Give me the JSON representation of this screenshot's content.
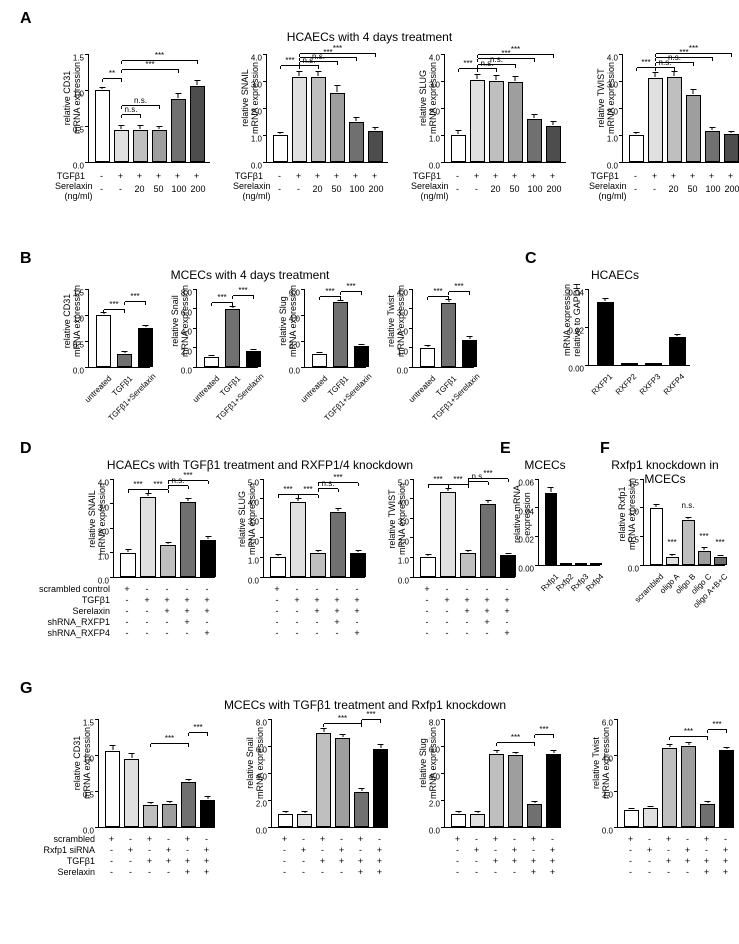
{
  "colors": {
    "white": "#ffffff",
    "gray1": "#e0e0e0",
    "gray2": "#bfbfbf",
    "gray3": "#9e9e9e",
    "gray4": "#707070",
    "gray5": "#4d4d4d",
    "black": "#000000"
  },
  "labels": {
    "A": "A",
    "B": "B",
    "C": "C",
    "D": "D",
    "E": "E",
    "F": "F",
    "G": "G"
  },
  "titles": {
    "A": "HCAECs with 4 days treatment",
    "B": "MCECs with 4 days treatment",
    "C": "HCAECs",
    "D": "HCAECs with TGFβ1 treatment and RXFP1/4 knockdown",
    "E": "MCECs",
    "F": "Rxfp1 knockdown in MCECs",
    "G": "MCECs with TGFβ1 treatment and Rxfp1 knockdown"
  },
  "panelA": {
    "row1": "TGFβ1",
    "row2": "Serelaxin\n(ng/ml)",
    "conds_r1": [
      "-",
      "+",
      "+",
      "+",
      "+",
      "+"
    ],
    "conds_r2": [
      "-",
      "-",
      "20",
      "50",
      "100",
      "200"
    ],
    "charts": [
      {
        "ylabel": "relative CD31\nmRNA expression",
        "ymax": 1.5,
        "ytick": 0.5,
        "bars": [
          1.0,
          0.45,
          0.45,
          0.45,
          0.88,
          1.05
        ],
        "err": [
          0.03,
          0.05,
          0.05,
          0.04,
          0.07,
          0.07
        ],
        "colors": [
          "white",
          "gray1",
          "gray2",
          "gray3",
          "gray4",
          "gray5"
        ],
        "sigs": [
          {
            "from": 0,
            "to": 1,
            "y": 1.15,
            "text": "**"
          },
          {
            "from": 1,
            "to": 2,
            "y": 0.65,
            "text": "n.s."
          },
          {
            "from": 1,
            "to": 3,
            "y": 0.78,
            "text": "n.s."
          },
          {
            "from": 1,
            "to": 4,
            "y": 1.28,
            "text": "***"
          },
          {
            "from": 1,
            "to": 5,
            "y": 1.4,
            "text": "***"
          }
        ]
      },
      {
        "ylabel": "relative SNAIL\nmRNA expression",
        "ymax": 4.0,
        "ytick": 1.0,
        "bars": [
          1.0,
          3.15,
          3.15,
          2.55,
          1.5,
          1.15
        ],
        "err": [
          0.08,
          0.2,
          0.2,
          0.25,
          0.12,
          0.1
        ],
        "colors": [
          "white",
          "gray1",
          "gray2",
          "gray3",
          "gray4",
          "gray5"
        ],
        "sigs": [
          {
            "from": 0,
            "to": 1,
            "y": 3.55,
            "text": "***"
          },
          {
            "from": 1,
            "to": 2,
            "y": 3.55,
            "text": "n.s."
          },
          {
            "from": 1,
            "to": 3,
            "y": 3.7,
            "text": "n.s."
          },
          {
            "from": 1,
            "to": 4,
            "y": 3.85,
            "text": "***"
          },
          {
            "from": 1,
            "to": 5,
            "y": 4.0,
            "text": "***"
          }
        ]
      },
      {
        "ylabel": "relative SLUG\nmRNA expression",
        "ymax": 4.0,
        "ytick": 1.0,
        "bars": [
          1.0,
          3.05,
          3.0,
          2.95,
          1.6,
          1.35
        ],
        "err": [
          0.15,
          0.18,
          0.18,
          0.2,
          0.15,
          0.15
        ],
        "colors": [
          "white",
          "gray1",
          "gray2",
          "gray3",
          "gray4",
          "gray5"
        ],
        "sigs": [
          {
            "from": 0,
            "to": 1,
            "y": 3.45,
            "text": "***"
          },
          {
            "from": 1,
            "to": 2,
            "y": 3.45,
            "text": "n.s."
          },
          {
            "from": 1,
            "to": 3,
            "y": 3.6,
            "text": "n.s."
          },
          {
            "from": 1,
            "to": 4,
            "y": 3.8,
            "text": "***"
          },
          {
            "from": 1,
            "to": 5,
            "y": 3.95,
            "text": "***"
          }
        ]
      },
      {
        "ylabel": "relative TWIST\nmRNA expression",
        "ymax": 4.0,
        "ytick": 1.0,
        "bars": [
          1.0,
          3.1,
          3.15,
          2.5,
          1.15,
          1.05
        ],
        "err": [
          0.08,
          0.2,
          0.2,
          0.18,
          0.1,
          0.08
        ],
        "colors": [
          "white",
          "gray1",
          "gray2",
          "gray3",
          "gray4",
          "gray5"
        ],
        "sigs": [
          {
            "from": 0,
            "to": 1,
            "y": 3.5,
            "text": "***"
          },
          {
            "from": 1,
            "to": 2,
            "y": 3.5,
            "text": "n.s."
          },
          {
            "from": 1,
            "to": 3,
            "y": 3.65,
            "text": "n.s."
          },
          {
            "from": 1,
            "to": 4,
            "y": 3.85,
            "text": "***"
          },
          {
            "from": 1,
            "to": 5,
            "y": 4.0,
            "text": "***"
          }
        ]
      }
    ]
  },
  "panelB": {
    "xlabs": [
      "untreated",
      "TGFβ1",
      "TGFβ1+Serelaxin"
    ],
    "charts": [
      {
        "ylabel": "relative CD31\nmRNA expression",
        "ymax": 1.5,
        "ytick": 0.5,
        "bars": [
          1.0,
          0.25,
          0.75
        ],
        "err": [
          0.03,
          0.03,
          0.03
        ],
        "colors": [
          "white",
          "gray4",
          "black"
        ],
        "sigs": [
          {
            "from": 0,
            "to": 1,
            "y": 1.1,
            "text": "***"
          },
          {
            "from": 1,
            "to": 2,
            "y": 1.25,
            "text": "***"
          }
        ]
      },
      {
        "ylabel": "relative Snail\nmRNA expression",
        "ymax": 8,
        "ytick": 2,
        "bars": [
          1.0,
          6.0,
          1.6
        ],
        "err": [
          0.1,
          0.15,
          0.15
        ],
        "colors": [
          "white",
          "gray4",
          "black"
        ],
        "sigs": [
          {
            "from": 0,
            "to": 1,
            "y": 6.6,
            "text": "***"
          },
          {
            "from": 1,
            "to": 2,
            "y": 7.3,
            "text": "***"
          }
        ]
      },
      {
        "ylabel": "relative Slug\nmRNA expression",
        "ymax": 6,
        "ytick": 2,
        "bars": [
          1.0,
          5.0,
          1.6
        ],
        "err": [
          0.1,
          0.1,
          0.12
        ],
        "colors": [
          "white",
          "gray4",
          "black"
        ],
        "sigs": [
          {
            "from": 0,
            "to": 1,
            "y": 5.4,
            "text": "***"
          },
          {
            "from": 1,
            "to": 2,
            "y": 5.8,
            "text": "***"
          }
        ]
      },
      {
        "ylabel": "relative Twist\nmRNA expression",
        "ymax": 4,
        "ytick": 1,
        "bars": [
          1.0,
          3.3,
          1.4
        ],
        "err": [
          0.1,
          0.12,
          0.12
        ],
        "colors": [
          "white",
          "gray4",
          "black"
        ],
        "sigs": [
          {
            "from": 0,
            "to": 1,
            "y": 3.6,
            "text": "***"
          },
          {
            "from": 1,
            "to": 2,
            "y": 3.85,
            "text": "***"
          }
        ]
      }
    ]
  },
  "panelC": {
    "ylabel": "mRNA expression\nrelative to GAPDH",
    "ymax": 0.04,
    "ytick": 0.02,
    "xlabs": [
      "RXFP1",
      "RXFP2",
      "RXFP3",
      "RXFP4"
    ],
    "bars": [
      0.033,
      0,
      0,
      0.015
    ],
    "err": [
      0.002,
      0,
      0,
      0.001
    ],
    "colors": [
      "black",
      "black",
      "black",
      "black"
    ]
  },
  "panelD": {
    "rows": [
      "scrambled control",
      "TGFβ1",
      "Serelaxin",
      "shRNA_RXFP1",
      "shRNA_RXFP4"
    ],
    "conds": [
      [
        "+",
        "-",
        "-",
        "-",
        "-"
      ],
      [
        "-",
        "+",
        "+",
        "+",
        "+"
      ],
      [
        "-",
        "-",
        "+",
        "+",
        "+"
      ],
      [
        "-",
        "-",
        "-",
        "+",
        "-"
      ],
      [
        "-",
        "-",
        "-",
        "-",
        "+"
      ]
    ],
    "charts": [
      {
        "ylabel": "relative SNAIL\nmRNA expression",
        "ymax": 4,
        "ytick": 1,
        "bars": [
          1.0,
          3.25,
          1.3,
          3.05,
          1.5
        ],
        "err": [
          0.12,
          0.12,
          0.1,
          0.12,
          0.15
        ],
        "colors": [
          "white",
          "gray1",
          "gray2",
          "gray4",
          "black"
        ],
        "sigs": [
          {
            "from": 0,
            "to": 1,
            "y": 3.55,
            "text": "***"
          },
          {
            "from": 1,
            "to": 2,
            "y": 3.55,
            "text": "***"
          },
          {
            "from": 2,
            "to": 3,
            "y": 3.7,
            "text": "n.s."
          },
          {
            "from": 2,
            "to": 4,
            "y": 3.9,
            "text": "***"
          }
        ]
      },
      {
        "ylabel": "relative SLUG\nmRNA expression",
        "ymax": 5,
        "ytick": 1,
        "bars": [
          1.0,
          3.85,
          1.25,
          3.3,
          1.25
        ],
        "err": [
          0.1,
          0.15,
          0.1,
          0.15,
          0.1
        ],
        "colors": [
          "white",
          "gray1",
          "gray2",
          "gray4",
          "black"
        ],
        "sigs": [
          {
            "from": 0,
            "to": 1,
            "y": 4.2,
            "text": "***"
          },
          {
            "from": 1,
            "to": 2,
            "y": 4.2,
            "text": "***"
          },
          {
            "from": 2,
            "to": 3,
            "y": 4.5,
            "text": "n.s."
          },
          {
            "from": 2,
            "to": 4,
            "y": 4.8,
            "text": "***"
          }
        ]
      },
      {
        "ylabel": "relative TWIST\nmRNA expression",
        "ymax": 5,
        "ytick": 1,
        "bars": [
          1.0,
          4.35,
          1.25,
          3.75,
          1.1
        ],
        "err": [
          0.1,
          0.15,
          0.1,
          0.15,
          0.1
        ],
        "colors": [
          "white",
          "gray1",
          "gray2",
          "gray4",
          "black"
        ],
        "sigs": [
          {
            "from": 0,
            "to": 1,
            "y": 4.7,
            "text": "***"
          },
          {
            "from": 1,
            "to": 2,
            "y": 4.7,
            "text": "***"
          },
          {
            "from": 2,
            "to": 3,
            "y": 4.85,
            "text": "n.s."
          },
          {
            "from": 2,
            "to": 4,
            "y": 5.0,
            "text": "***"
          }
        ]
      }
    ]
  },
  "panelE": {
    "ylabel": "relative mRNA\nexpression",
    "ymax": 0.06,
    "ytick": 0.02,
    "xlabs": [
      "Rxfp1",
      "Rxfp2",
      "Rxfp3",
      "Rxfp4"
    ],
    "bars": [
      0.05,
      0,
      0,
      0
    ],
    "err": [
      0.004,
      0,
      0,
      0
    ],
    "colors": [
      "black",
      "black",
      "black",
      "black"
    ]
  },
  "panelF": {
    "ylabel": "relative Rxfp1\nmRNA expression",
    "ymax": 1.5,
    "ytick": 0.5,
    "xlabs": [
      "scrambled",
      "oligo A",
      "oligo B",
      "oligo C",
      "oligo A+B+C"
    ],
    "bars": [
      1.0,
      0.14,
      0.78,
      0.25,
      0.14
    ],
    "err": [
      0.04,
      0.03,
      0.04,
      0.04,
      0.02
    ],
    "colors": [
      "white",
      "gray1",
      "gray2",
      "gray3",
      "gray4"
    ],
    "sigs": [
      {
        "from": 0,
        "to": 1,
        "text": "***",
        "at": 1
      },
      {
        "from": 0,
        "to": 2,
        "text": "n.s.",
        "at": 2
      },
      {
        "from": 0,
        "to": 3,
        "text": "***",
        "at": 3
      },
      {
        "from": 0,
        "to": 4,
        "text": "***",
        "at": 4
      }
    ]
  },
  "panelG": {
    "rows": [
      "scrambled",
      "Rxfp1 siRNA",
      "TGFβ1",
      "Serelaxin"
    ],
    "conds": [
      [
        "+",
        "-",
        "+",
        "-",
        "+",
        "-"
      ],
      [
        "-",
        "+",
        "-",
        "+",
        "-",
        "+"
      ],
      [
        "-",
        "-",
        "+",
        "+",
        "+",
        "+"
      ],
      [
        "-",
        "-",
        "-",
        "-",
        "+",
        "+"
      ]
    ],
    "charts": [
      {
        "ylabel": "relative CD31\nmRNA expression",
        "ymax": 1.5,
        "ytick": 0.5,
        "bars": [
          1.05,
          0.95,
          0.3,
          0.32,
          0.62,
          0.38
        ],
        "err": [
          0.08,
          0.06,
          0.03,
          0.03,
          0.04,
          0.03
        ],
        "colors": [
          "white",
          "gray1",
          "gray2",
          "gray3",
          "gray4",
          "black"
        ],
        "sigs": [
          {
            "from": 2,
            "to": 4,
            "y": 1.15,
            "text": "***"
          },
          {
            "from": 4,
            "to": 5,
            "y": 1.3,
            "text": "***"
          }
        ]
      },
      {
        "ylabel": "relative Snail\nmRNA expression",
        "ymax": 8,
        "ytick": 2,
        "bars": [
          1.0,
          1.0,
          7.0,
          6.6,
          2.6,
          5.8
        ],
        "err": [
          0.1,
          0.1,
          0.25,
          0.25,
          0.2,
          0.25
        ],
        "colors": [
          "white",
          "gray1",
          "gray2",
          "gray3",
          "gray4",
          "black"
        ],
        "sigs": [
          {
            "from": 2,
            "to": 4,
            "y": 7.6,
            "text": "***"
          },
          {
            "from": 4,
            "to": 5,
            "y": 7.9,
            "text": "***"
          }
        ]
      },
      {
        "ylabel": "relative Slug\nmRNA expression",
        "ymax": 8,
        "ytick": 2,
        "bars": [
          1.0,
          1.0,
          5.4,
          5.3,
          1.7,
          5.4
        ],
        "err": [
          0.1,
          0.1,
          0.2,
          0.2,
          0.15,
          0.2
        ],
        "colors": [
          "white",
          "gray1",
          "gray2",
          "gray3",
          "gray4",
          "black"
        ],
        "sigs": [
          {
            "from": 2,
            "to": 4,
            "y": 6.2,
            "text": "***"
          },
          {
            "from": 4,
            "to": 5,
            "y": 6.8,
            "text": "***"
          }
        ]
      },
      {
        "ylabel": "relative Twist\nmRNA expression",
        "ymax": 6,
        "ytick": 2,
        "bars": [
          0.95,
          1.05,
          4.4,
          4.5,
          1.3,
          4.3
        ],
        "err": [
          0.05,
          0.05,
          0.15,
          0.15,
          0.1,
          0.1
        ],
        "colors": [
          "white",
          "gray1",
          "gray2",
          "gray3",
          "gray4",
          "black"
        ],
        "sigs": [
          {
            "from": 2,
            "to": 4,
            "y": 5.0,
            "text": "***"
          },
          {
            "from": 4,
            "to": 5,
            "y": 5.4,
            "text": "***"
          }
        ]
      }
    ]
  }
}
